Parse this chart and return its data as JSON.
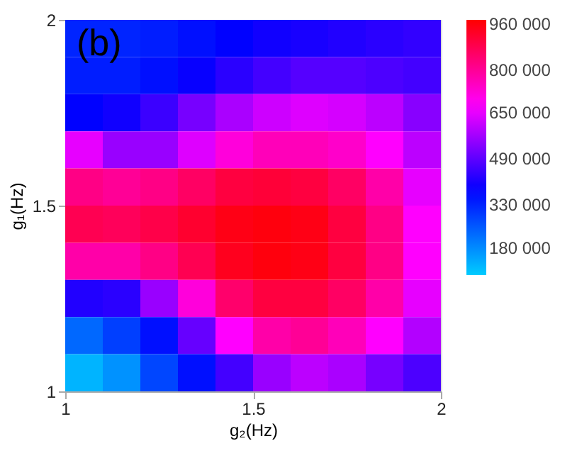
{
  "chart_data": {
    "type": "heatmap",
    "xlabel": "g₂(Hz)",
    "ylabel": "g₁(Hz)",
    "annotations": [
      "(b)"
    ],
    "x": [
      1.05,
      1.15,
      1.25,
      1.35,
      1.45,
      1.55,
      1.65,
      1.75,
      1.85,
      1.95
    ],
    "y": [
      1.95,
      1.85,
      1.75,
      1.65,
      1.55,
      1.45,
      1.35,
      1.25,
      1.15,
      1.05
    ],
    "cells": [
      [
        330000,
        330000,
        340000,
        360000,
        380000,
        400000,
        410000,
        420000,
        430000,
        440000
      ],
      [
        340000,
        340000,
        360000,
        390000,
        430000,
        460000,
        480000,
        480000,
        470000,
        460000
      ],
      [
        380000,
        400000,
        450000,
        520000,
        580000,
        620000,
        640000,
        630000,
        600000,
        540000
      ],
      [
        650000,
        560000,
        560000,
        640000,
        720000,
        760000,
        760000,
        740000,
        680000,
        600000
      ],
      [
        820000,
        800000,
        820000,
        860000,
        900000,
        910000,
        900000,
        860000,
        780000,
        650000
      ],
      [
        880000,
        870000,
        890000,
        920000,
        950000,
        960000,
        950000,
        900000,
        820000,
        680000
      ],
      [
        780000,
        780000,
        820000,
        880000,
        940000,
        960000,
        950000,
        900000,
        820000,
        680000
      ],
      [
        420000,
        430000,
        560000,
        720000,
        850000,
        900000,
        900000,
        860000,
        780000,
        650000
      ],
      [
        230000,
        290000,
        360000,
        500000,
        680000,
        780000,
        800000,
        760000,
        680000,
        590000
      ],
      [
        120000,
        170000,
        280000,
        360000,
        460000,
        560000,
        600000,
        580000,
        520000,
        470000
      ]
    ],
    "colors": [
      "#00ccff",
      "#0000ff",
      "#ff00ff",
      "#ff0000"
    ],
    "clim": [
      85000,
      975000
    ],
    "cticks": [
      {
        "value": 180000,
        "label": "180 000"
      },
      {
        "value": 330000,
        "label": "330 000"
      },
      {
        "value": 490000,
        "label": "490 000"
      },
      {
        "value": 650000,
        "label": "650 000"
      },
      {
        "value": 800000,
        "label": "800 000"
      },
      {
        "value": 960000,
        "label": "960 000"
      }
    ],
    "xlim": [
      1,
      2
    ],
    "ylim": [
      1,
      2
    ],
    "xticks": [
      1,
      1.5,
      2
    ],
    "yticks": [
      1,
      1.5,
      2
    ],
    "grid": false
  }
}
